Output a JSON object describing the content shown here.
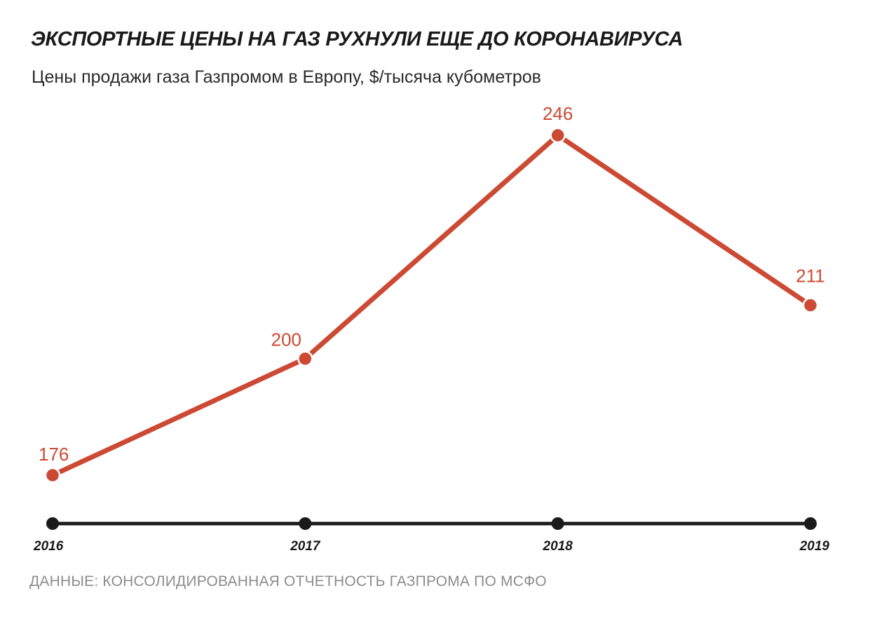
{
  "title": "ЭКСПОРТНЫЕ ЦЕНЫ НА ГАЗ РУХНУЛИ ЕЩЕ ДО КОРОНАВИРУСА",
  "subtitle": "Цены продажи газа Газпромом в Европу, $/тысяча кубометров",
  "source": "ДАННЫЕ: КОНСОЛИДИРОВАННАЯ ОТЧЕТНОСТЬ ГАЗПРОМА ПО МСФО",
  "colors": {
    "line": "#cc4a34",
    "axis": "#1a1a1a",
    "value_label": "#cc4a34",
    "tick_label": "#1a1a1a"
  },
  "chart_data": {
    "type": "line",
    "title": "ЭКСПОРТНЫЕ ЦЕНЫ НА ГАЗ РУХНУЛИ ЕЩЕ ДО КОРОНАВИРУСА",
    "subtitle": "Цены продажи газа Газпромом в Европу, $/тысяча кубометров",
    "categories": [
      "2016",
      "2017",
      "2018",
      "2019"
    ],
    "values": [
      176,
      200,
      246,
      211
    ],
    "data_labels": [
      "176",
      "200",
      "246",
      "211"
    ],
    "xlabel": "",
    "ylabel": "",
    "y_axis_visible": false,
    "grid": false,
    "legend": "none"
  }
}
